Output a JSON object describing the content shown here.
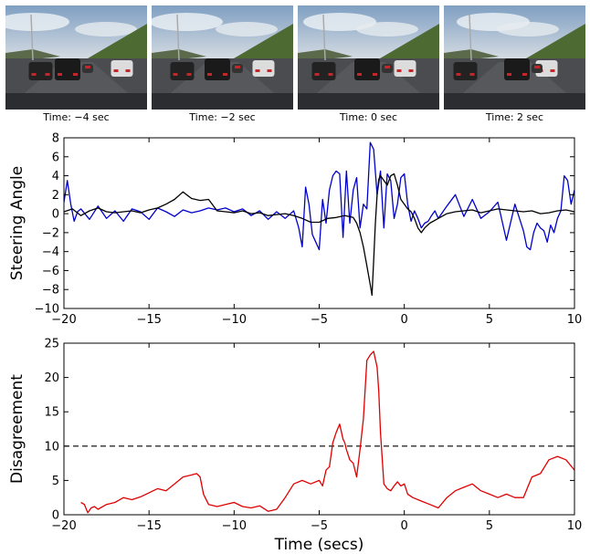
{
  "frames": [
    {
      "caption": "Time: −4 sec"
    },
    {
      "caption": "Time: −2 sec"
    },
    {
      "caption": "Time: 0 sec"
    },
    {
      "caption": "Time: 2 sec"
    }
  ],
  "chart_data": [
    {
      "type": "line",
      "title": "",
      "xlabel": "",
      "ylabel": "Steering Angle",
      "xlim": [
        -20,
        10
      ],
      "ylim": [
        -10,
        8
      ],
      "xticks": [
        -20,
        -15,
        -10,
        -5,
        0,
        5,
        10
      ],
      "yticks": [
        -10,
        -8,
        -6,
        -4,
        -2,
        0,
        2,
        4,
        6,
        8
      ],
      "grid": false,
      "series": [
        {
          "color": "#0000cc",
          "x": [
            -20,
            -19.8,
            -19.6,
            -19.4,
            -19.2,
            -19,
            -18.5,
            -18,
            -17.5,
            -17,
            -16.5,
            -16,
            -15.5,
            -15,
            -14.5,
            -14,
            -13.5,
            -13,
            -12.5,
            -12,
            -11.5,
            -11,
            -10.5,
            -10,
            -9.5,
            -9,
            -8.5,
            -8,
            -7.5,
            -7,
            -6.5,
            -6.2,
            -6,
            -5.8,
            -5.6,
            -5.4,
            -5.2,
            -5,
            -4.8,
            -4.6,
            -4.4,
            -4.2,
            -4,
            -3.8,
            -3.6,
            -3.4,
            -3.2,
            -3,
            -2.8,
            -2.6,
            -2.4,
            -2.2,
            -2,
            -1.8,
            -1.6,
            -1.4,
            -1.2,
            -1,
            -0.8,
            -0.6,
            -0.4,
            -0.2,
            0,
            0.2,
            0.4,
            0.6,
            0.8,
            1,
            1.2,
            1.4,
            1.6,
            1.8,
            2,
            2.5,
            3,
            3.5,
            4,
            4.5,
            5,
            5.5,
            6,
            6.5,
            7,
            7.2,
            7.4,
            7.6,
            7.8,
            8,
            8.2,
            8.4,
            8.6,
            8.8,
            9,
            9.2,
            9.4,
            9.6,
            9.8,
            10
          ],
          "y": [
            1.2,
            3.5,
            1.0,
            -0.8,
            0.2,
            0.5,
            -0.6,
            0.8,
            -0.5,
            0.3,
            -0.8,
            0.5,
            0.2,
            -0.6,
            0.6,
            0.2,
            -0.3,
            0.4,
            0.1,
            0.3,
            0.6,
            0.4,
            0.6,
            0.2,
            0.5,
            -0.2,
            0.3,
            -0.6,
            0.2,
            -0.5,
            0.3,
            -1.5,
            -3.5,
            2.8,
            1.0,
            -2.2,
            -3.0,
            -3.8,
            1.5,
            -1.0,
            2.5,
            4.0,
            4.5,
            4.2,
            -2.5,
            4.5,
            -1.0,
            2.5,
            3.8,
            -1.5,
            1.0,
            0.5,
            7.5,
            6.8,
            2.0,
            4.5,
            -1.5,
            4.2,
            3.5,
            -0.5,
            1.0,
            3.8,
            4.2,
            1.0,
            -0.8,
            0.3,
            -0.5,
            -1.5,
            -1.0,
            -0.8,
            -0.2,
            0.3,
            -0.5,
            0.8,
            2.0,
            -0.3,
            1.5,
            -0.5,
            0.2,
            1.2,
            -2.8,
            1.0,
            -1.8,
            -3.5,
            -3.8,
            -2.0,
            -1.0,
            -1.5,
            -1.8,
            -3.0,
            -1.2,
            -2.0,
            -0.5,
            0.3,
            4.0,
            3.5,
            1.0,
            2.5
          ]
        },
        {
          "color": "#000000",
          "x": [
            -20,
            -19.5,
            -19,
            -18.5,
            -18,
            -17.5,
            -17,
            -16.5,
            -16,
            -15.5,
            -15,
            -14.5,
            -14,
            -13.5,
            -13,
            -12.8,
            -12.5,
            -12,
            -11.5,
            -11,
            -10.5,
            -10,
            -9.5,
            -9,
            -8.5,
            -8,
            -7.5,
            -7,
            -6.5,
            -6,
            -5.5,
            -5,
            -4.5,
            -4,
            -3.5,
            -3,
            -2.8,
            -2.6,
            -2.4,
            -2.2,
            -2,
            -1.9,
            -1.8,
            -1.7,
            -1.6,
            -1.5,
            -1.4,
            -1.2,
            -1,
            -0.8,
            -0.6,
            -0.4,
            -0.2,
            0,
            0.2,
            0.4,
            0.6,
            0.8,
            1,
            1.2,
            1.5,
            2,
            2.5,
            3,
            3.5,
            4,
            4.5,
            5,
            5.5,
            6,
            6.5,
            7,
            7.5,
            8,
            8.5,
            9,
            9.5,
            10
          ],
          "y": [
            0.2,
            0.5,
            -0.2,
            0.3,
            0.6,
            0.2,
            0.1,
            0.2,
            0.3,
            0.1,
            0.4,
            0.6,
            1.0,
            1.5,
            2.3,
            2.0,
            1.6,
            1.4,
            1.5,
            0.3,
            0.2,
            0.1,
            0.3,
            0.0,
            0.1,
            -0.2,
            -0.1,
            0.0,
            -0.2,
            -0.5,
            -0.9,
            -0.9,
            -0.5,
            -0.4,
            -0.2,
            -0.4,
            -1.0,
            -2.0,
            -3.5,
            -5.5,
            -7.5,
            -8.6,
            -5.0,
            -1.0,
            2.0,
            3.6,
            4.0,
            3.5,
            3.0,
            4.0,
            4.2,
            3.0,
            1.5,
            1.0,
            0.5,
            0.2,
            -0.5,
            -1.5,
            -2.0,
            -1.5,
            -1.0,
            -0.5,
            0.0,
            0.2,
            0.3,
            0.4,
            0.1,
            0.3,
            0.5,
            0.4,
            0.3,
            0.2,
            0.3,
            0.0,
            0.1,
            0.3,
            0.4,
            0.2
          ]
        }
      ]
    },
    {
      "type": "line",
      "title": "",
      "xlabel": "Time (secs)",
      "ylabel": "Disagreement",
      "xlim": [
        -20,
        10
      ],
      "ylim": [
        0,
        25
      ],
      "xticks": [
        -20,
        -15,
        -10,
        -5,
        0,
        5,
        10
      ],
      "yticks": [
        0,
        5,
        10,
        15,
        20,
        25
      ],
      "grid": false,
      "threshold": {
        "y": 10,
        "color": "#000000",
        "style": "dashed"
      },
      "series": [
        {
          "color": "#e00000",
          "x": [
            -19,
            -18.8,
            -18.6,
            -18.4,
            -18.2,
            -18,
            -17.5,
            -17,
            -16.5,
            -16,
            -15.5,
            -15,
            -14.5,
            -14,
            -13.5,
            -13,
            -12.5,
            -12.2,
            -12,
            -11.8,
            -11.5,
            -11,
            -10.5,
            -10,
            -9.5,
            -9,
            -8.5,
            -8,
            -7.5,
            -7,
            -6.5,
            -6,
            -5.5,
            -5,
            -4.8,
            -4.6,
            -4.4,
            -4.2,
            -4,
            -3.8,
            -3.6,
            -3.5,
            -3.4,
            -3.2,
            -3,
            -2.8,
            -2.6,
            -2.4,
            -2.2,
            -2,
            -1.8,
            -1.6,
            -1.5,
            -1.4,
            -1.2,
            -1,
            -0.8,
            -0.6,
            -0.4,
            -0.2,
            0,
            0.2,
            0.5,
            1,
            1.5,
            2,
            2.5,
            3,
            3.5,
            4,
            4.5,
            5,
            5.5,
            6,
            6.5,
            7,
            7.5,
            8,
            8.5,
            9,
            9.5,
            10
          ],
          "y": [
            1.8,
            1.5,
            0.3,
            1.0,
            1.2,
            0.8,
            1.5,
            1.8,
            2.5,
            2.2,
            2.6,
            3.2,
            3.8,
            3.5,
            4.5,
            5.5,
            5.8,
            6.0,
            5.5,
            3.0,
            1.5,
            1.2,
            1.5,
            1.8,
            1.2,
            1.0,
            1.3,
            0.5,
            0.8,
            2.5,
            4.5,
            5.0,
            4.5,
            5.0,
            4.2,
            6.5,
            7.0,
            10.5,
            12.0,
            13.2,
            11.0,
            10.5,
            9.5,
            8.0,
            7.5,
            5.5,
            9.5,
            14.0,
            22.5,
            23.3,
            23.8,
            21.5,
            18.0,
            12.0,
            4.5,
            3.8,
            3.5,
            4.2,
            4.8,
            4.2,
            4.5,
            3.0,
            2.5,
            2.0,
            1.5,
            1.0,
            2.5,
            3.5,
            4.0,
            4.5,
            3.5,
            3.0,
            2.5,
            3.0,
            2.5,
            2.5,
            5.5,
            6.0,
            8.0,
            8.5,
            8.0,
            6.5
          ]
        }
      ]
    }
  ]
}
